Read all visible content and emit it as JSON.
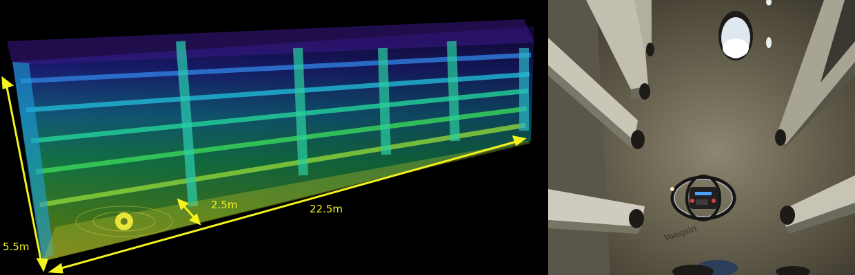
{
  "left_panel": {
    "dimensions": {
      "height": "5.5m",
      "aisle_gap": "2.5m",
      "length": "22.5m"
    },
    "annotation_color": "#f3f31e"
  },
  "right_panel": {
    "handwriting": "Vaaspiiri"
  }
}
